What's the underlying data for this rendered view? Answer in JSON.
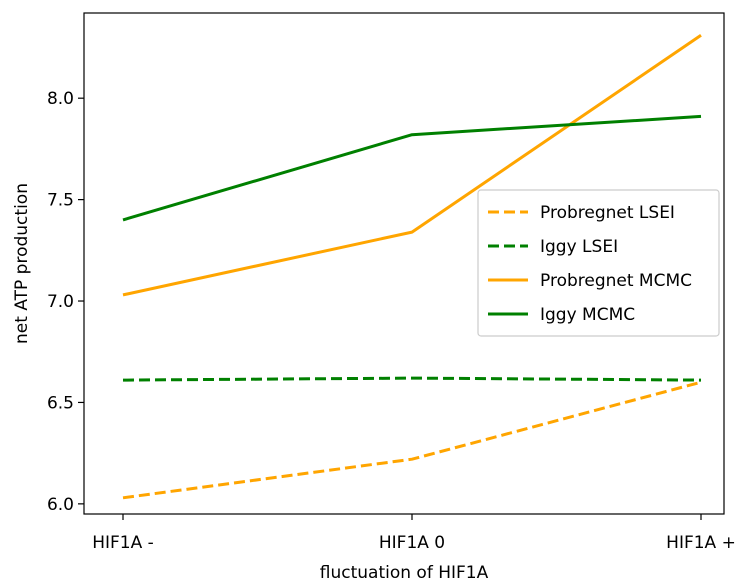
{
  "chart_data": {
    "type": "line",
    "categories": [
      "HIF1A -",
      "HIF1A 0",
      "HIF1A +"
    ],
    "xlabel": "fluctuation of HIF1A",
    "ylabel": "net ATP production",
    "ylim": [
      5.95,
      8.42
    ],
    "yticks": [
      "6.0",
      "6.5",
      "7.0",
      "7.5",
      "8.0"
    ],
    "grid": false,
    "legend_position": "center-right",
    "series": [
      {
        "name": "Probregnet LSEI",
        "values": [
          6.03,
          6.22,
          6.6
        ],
        "color": "#FFA500",
        "dash": "dashed"
      },
      {
        "name": "Iggy LSEI",
        "values": [
          6.61,
          6.62,
          6.61
        ],
        "color": "#008000",
        "dash": "dashed"
      },
      {
        "name": "Probregnet MCMC",
        "values": [
          7.03,
          7.34,
          8.31
        ],
        "color": "#FFA500",
        "dash": "solid"
      },
      {
        "name": "Iggy MCMC",
        "values": [
          7.4,
          7.82,
          7.91
        ],
        "color": "#008000",
        "dash": "solid"
      }
    ]
  }
}
